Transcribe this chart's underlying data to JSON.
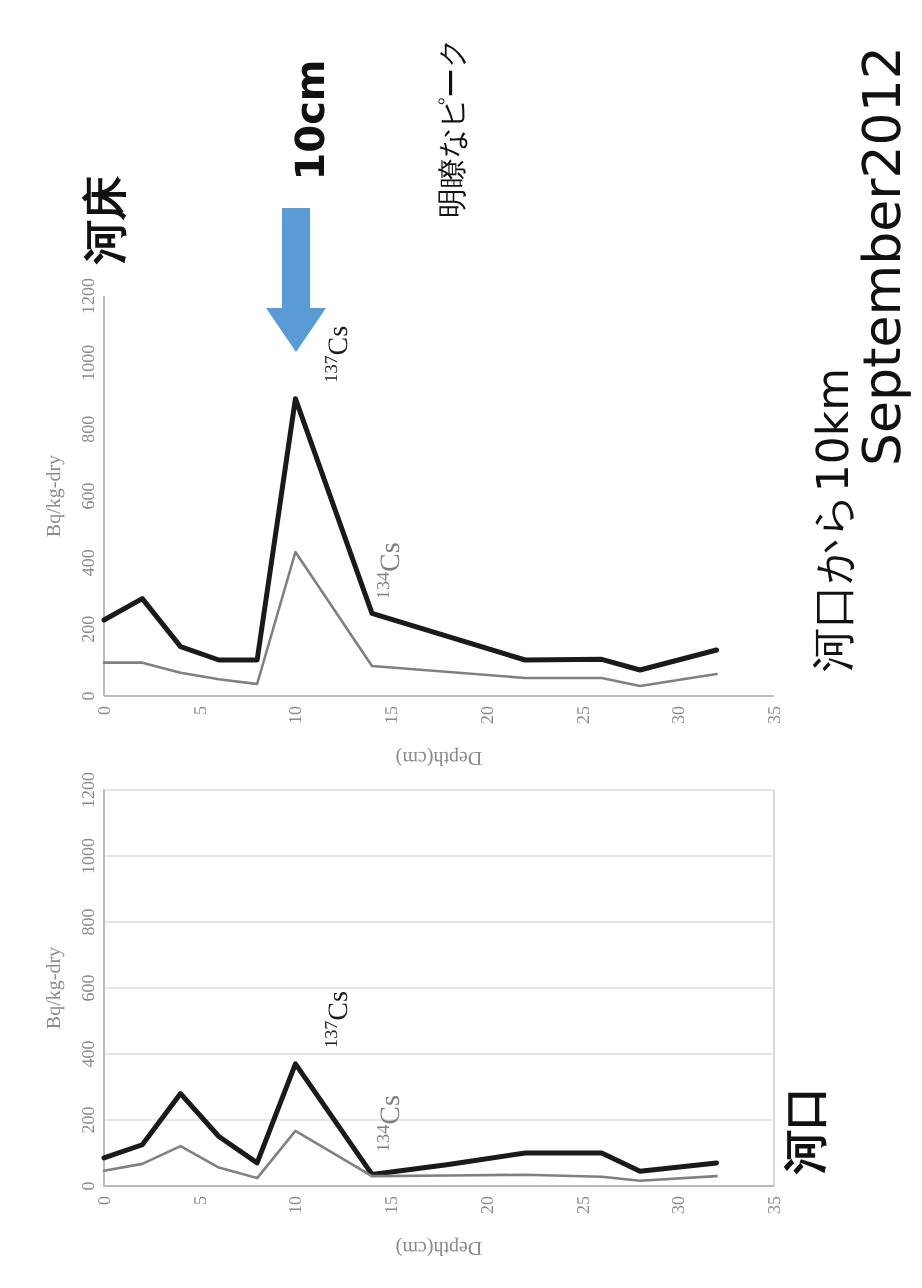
{
  "chart_data": [
    {
      "type": "line",
      "title": "河口",
      "xlabel": "Depth(cm)",
      "ylabel": "Bq/kg-dry",
      "xlim": [
        0,
        35
      ],
      "xticks": [
        0,
        5,
        10,
        15,
        20,
        25,
        30,
        35
      ],
      "ylim": [
        0,
        1200
      ],
      "yticks": [
        0,
        200,
        400,
        600,
        800,
        1000,
        1200
      ],
      "grid": "y",
      "x": [
        0,
        2,
        4,
        6,
        8,
        10,
        14,
        18,
        22,
        26,
        28,
        32
      ],
      "series": [
        {
          "name": "$^{137}$Cs",
          "color": "#1a1a1a",
          "values": [
            85,
            125,
            280,
            150,
            70,
            370,
            35,
            65,
            100,
            100,
            45,
            70
          ]
        },
        {
          "name": "$^{134}$Cs",
          "color": "#808080",
          "values": [
            46,
            67,
            121,
            56,
            24,
            167,
            30,
            32,
            34,
            28,
            16,
            30
          ]
        }
      ]
    },
    {
      "type": "line",
      "title": "河床",
      "xlabel": "Depth(cm)",
      "ylabel": "Bq/kg-dry",
      "xlim": [
        0,
        35
      ],
      "xticks": [
        0,
        5,
        10,
        15,
        20,
        25,
        30,
        35
      ],
      "ylim": [
        0,
        1200
      ],
      "yticks": [
        0,
        200,
        400,
        600,
        800,
        1000,
        1200
      ],
      "annotations": [
        "10cm",
        "明瞭なピーク",
        "河口から10km",
        "September2012"
      ],
      "x": [
        0,
        2,
        4,
        6,
        8,
        10,
        14,
        22,
        26,
        28,
        32
      ],
      "series": [
        {
          "name": "$^{137}$Cs",
          "color": "#1a1a1a",
          "values": [
            228,
            292,
            148,
            108,
            108,
            892,
            248,
            108,
            110,
            78,
            138
          ]
        },
        {
          "name": "$^{134}$Cs",
          "color": "#808080",
          "values": [
            100,
            100,
            70,
            50,
            36,
            432,
            90,
            54,
            54,
            30,
            66
          ]
        }
      ]
    }
  ]
}
